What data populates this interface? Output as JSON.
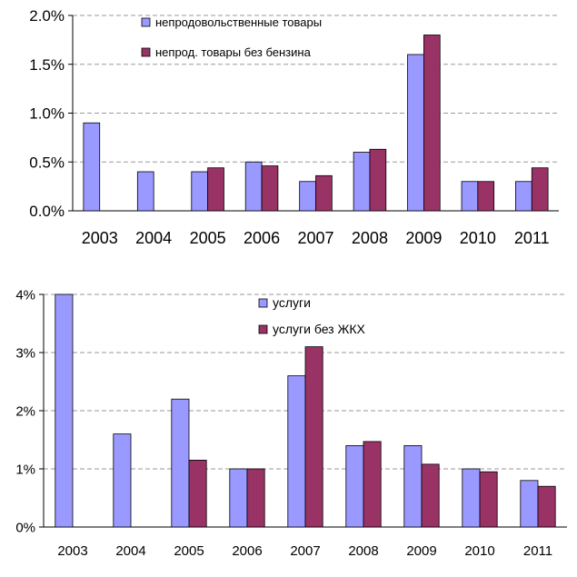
{
  "colors": {
    "series_a": "#9999ff",
    "series_b": "#993366",
    "grid": "#9a9a9a"
  },
  "chart_data": [
    {
      "type": "bar",
      "categories": [
        "2003",
        "2004",
        "2005",
        "2006",
        "2007",
        "2008",
        "2009",
        "2010",
        "2011"
      ],
      "series": [
        {
          "name": "непродовольственные товары",
          "values": [
            0.9,
            0.4,
            0.4,
            0.5,
            0.3,
            0.6,
            1.6,
            0.3,
            0.3
          ]
        },
        {
          "name": "непрод. товары без бензина",
          "values": [
            null,
            null,
            0.44,
            0.46,
            0.36,
            0.63,
            1.8,
            0.3,
            0.44
          ]
        }
      ],
      "yticks": [
        "0.0%",
        "0.5%",
        "1.0%",
        "1.5%",
        "2.0%"
      ],
      "ylim": [
        0,
        2
      ],
      "grid": true,
      "legend": "top-center"
    },
    {
      "type": "bar",
      "categories": [
        "2003",
        "2004",
        "2005",
        "2006",
        "2007",
        "2008",
        "2009",
        "2010",
        "2011"
      ],
      "series": [
        {
          "name": "услуги",
          "values": [
            4.0,
            1.6,
            2.2,
            1.0,
            2.6,
            1.4,
            1.4,
            1.0,
            0.8
          ]
        },
        {
          "name": "услуги без ЖКХ",
          "values": [
            null,
            null,
            1.15,
            1.0,
            3.1,
            1.47,
            1.08,
            0.95,
            0.7
          ]
        }
      ],
      "yticks": [
        "0%",
        "1%",
        "2%",
        "3%",
        "4%"
      ],
      "ylim": [
        0,
        4
      ],
      "grid": true,
      "legend": "top-center"
    }
  ]
}
